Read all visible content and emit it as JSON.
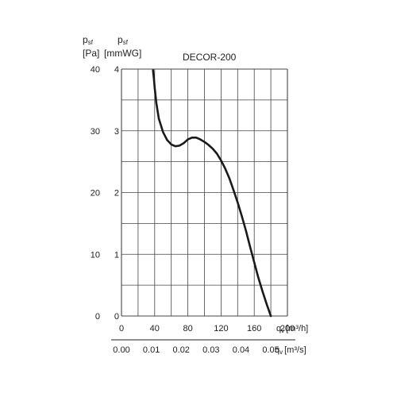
{
  "chart_data": {
    "type": "line",
    "title": "DECOR-200",
    "y_axes": {
      "left": {
        "symbol": "p",
        "subscript": "sf",
        "unit": "[Pa]",
        "ticks": [
          "40",
          "30",
          "20",
          "10",
          "0"
        ],
        "ylim": [
          0,
          40
        ]
      },
      "inner": {
        "symbol": "p",
        "subscript": "sf",
        "unit": "[mmWG]",
        "ticks": [
          "4",
          "3",
          "2",
          "1",
          "0"
        ],
        "ylim": [
          0,
          4
        ]
      }
    },
    "x_axes": {
      "primary": {
        "symbol": "q",
        "subscript": "v",
        "unit": "[m³/h]",
        "ticks": [
          "0",
          "40",
          "80",
          "120",
          "160",
          "200"
        ],
        "xlim": [
          0,
          200
        ]
      },
      "secondary": {
        "symbol": "q",
        "subscript": "v",
        "unit": "[m³/s]",
        "ticks": [
          "0.00",
          "0.01",
          "0.02",
          "0.03",
          "0.04",
          "0.05"
        ],
        "xlim": [
          0,
          0.0556
        ]
      }
    },
    "grid": true,
    "series": [
      {
        "x": [
          38,
          39,
          40,
          42,
          45,
          50,
          55,
          60,
          65,
          70,
          75,
          80,
          85,
          90,
          95,
          100,
          105,
          110,
          115,
          120,
          125,
          130,
          135,
          140,
          145,
          150,
          155,
          160,
          165,
          170,
          175,
          180
        ],
        "y": [
          3.98,
          3.85,
          3.7,
          3.45,
          3.2,
          2.98,
          2.85,
          2.78,
          2.75,
          2.76,
          2.8,
          2.86,
          2.89,
          2.89,
          2.86,
          2.82,
          2.77,
          2.71,
          2.63,
          2.52,
          2.39,
          2.23,
          2.04,
          1.84,
          1.62,
          1.38,
          1.12,
          0.87,
          0.62,
          0.4,
          0.19,
          0.0
        ]
      }
    ],
    "curve_color": "#1a1a1a",
    "grid_color": "#444444"
  }
}
